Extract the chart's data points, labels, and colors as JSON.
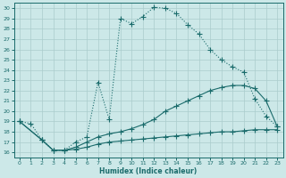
{
  "xlabel": "Humidex (Indice chaleur)",
  "bg_color": "#cce8e8",
  "grid_color": "#aacccc",
  "line_color": "#1a6b6b",
  "xlim": [
    -0.5,
    23.5
  ],
  "ylim": [
    15.5,
    30.5
  ],
  "xticks": [
    0,
    1,
    2,
    3,
    4,
    5,
    6,
    7,
    8,
    9,
    10,
    11,
    12,
    13,
    14,
    15,
    16,
    17,
    18,
    19,
    20,
    21,
    22,
    23
  ],
  "yticks": [
    16,
    17,
    18,
    19,
    20,
    21,
    22,
    23,
    24,
    25,
    26,
    27,
    28,
    29,
    30
  ],
  "curve1_x": [
    0,
    1,
    2,
    3,
    4,
    5,
    6,
    7,
    8,
    9,
    10,
    11,
    12,
    13,
    14,
    15,
    16,
    17,
    18,
    19,
    20,
    21,
    22,
    23
  ],
  "curve1_y": [
    19.0,
    18.8,
    17.2,
    16.2,
    16.2,
    17.0,
    17.5,
    22.8,
    19.2,
    29.0,
    28.5,
    29.2,
    30.1,
    30.0,
    29.5,
    28.4,
    27.5,
    26.0,
    25.0,
    24.3,
    23.8,
    21.2,
    19.5,
    18.5
  ],
  "curve2_x": [
    0,
    2,
    3,
    4,
    5,
    6,
    7,
    8,
    9,
    10,
    11,
    12,
    13,
    14,
    15,
    16,
    17,
    18,
    19,
    20,
    21,
    22,
    23
  ],
  "curve2_y": [
    19.0,
    17.2,
    16.2,
    16.2,
    16.5,
    17.0,
    17.5,
    17.8,
    18.0,
    18.3,
    18.7,
    19.2,
    20.0,
    20.5,
    21.0,
    21.5,
    22.0,
    22.3,
    22.5,
    22.5,
    22.2,
    21.0,
    18.5
  ],
  "curve3_x": [
    0,
    2,
    3,
    4,
    5,
    6,
    7,
    8,
    9,
    10,
    11,
    12,
    13,
    14,
    15,
    16,
    17,
    18,
    19,
    20,
    21,
    22,
    23
  ],
  "curve3_y": [
    19.0,
    17.2,
    16.2,
    16.2,
    16.3,
    16.5,
    16.8,
    17.0,
    17.1,
    17.2,
    17.3,
    17.4,
    17.5,
    17.6,
    17.7,
    17.8,
    17.9,
    18.0,
    18.0,
    18.1,
    18.2,
    18.2,
    18.2
  ]
}
